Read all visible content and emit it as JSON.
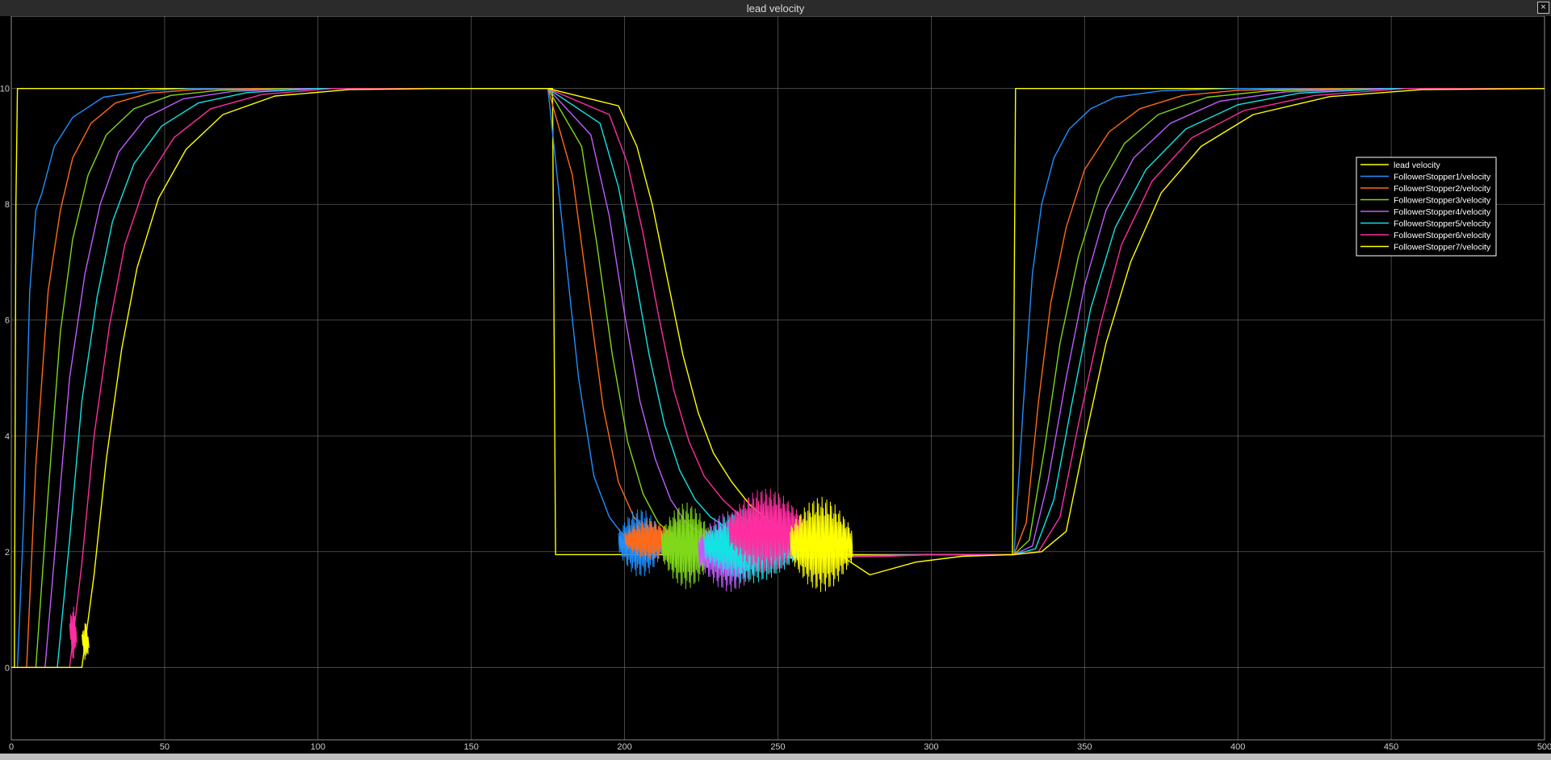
{
  "window": {
    "title": "lead velocity",
    "close_glyph": "×"
  },
  "colors": {
    "background": "#000000",
    "grid": "#595959",
    "axis_text": "#cfcfcf",
    "legend_border": "#ffffff",
    "legend_text": "#ffffff"
  },
  "chart_data": {
    "type": "line",
    "title": "lead velocity",
    "xlabel": "",
    "ylabel": "",
    "xlim": [
      0,
      500
    ],
    "ylim": [
      -1.25,
      11.25
    ],
    "xticks": [
      0,
      50,
      100,
      150,
      200,
      250,
      300,
      350,
      400,
      450,
      500
    ],
    "yticks": [
      0,
      2,
      4,
      6,
      8,
      10
    ],
    "grid": true,
    "legend_position": "top-right",
    "series": [
      {
        "name": "lead velocity",
        "color": "#ffff00",
        "x": [
          0,
          1,
          1.5,
          2,
          175,
          176.5,
          177.5,
          325,
          326.5,
          327.5,
          500
        ],
        "y": [
          0,
          0,
          8,
          10,
          10,
          10,
          1.95,
          1.95,
          1.95,
          10,
          10
        ]
      },
      {
        "name": "FollowerStopper1/velocity",
        "color": "#1f8fff",
        "x": [
          0,
          2,
          4,
          6,
          8,
          10,
          14,
          20,
          30,
          45,
          60,
          80,
          175,
          180,
          185,
          190,
          195,
          200,
          205,
          210,
          215,
          225,
          240,
          260,
          280,
          300,
          327,
          330,
          333,
          336,
          340,
          345,
          352,
          360,
          375,
          400,
          500
        ],
        "y": [
          0,
          0,
          2.5,
          6.5,
          7.9,
          8.2,
          9.0,
          9.5,
          9.85,
          9.97,
          10,
          10,
          10,
          7.5,
          5.0,
          3.3,
          2.6,
          2.25,
          2.1,
          2.05,
          1.95,
          1.95,
          1.9,
          1.92,
          1.93,
          1.95,
          1.95,
          4.5,
          6.8,
          8.0,
          8.8,
          9.3,
          9.65,
          9.85,
          9.96,
          10,
          10
        ]
      },
      {
        "name": "FollowerStopper2/velocity",
        "color": "#ff6a1a",
        "x": [
          0,
          5,
          8,
          12,
          16,
          20,
          26,
          34,
          45,
          60,
          80,
          100,
          175,
          183,
          188,
          193,
          198,
          203,
          208,
          213,
          220,
          235,
          255,
          280,
          300,
          327,
          331,
          335,
          339,
          344,
          350,
          358,
          368,
          382,
          400,
          430,
          500
        ],
        "y": [
          0,
          0,
          3.5,
          6.5,
          7.9,
          8.8,
          9.4,
          9.75,
          9.92,
          9.98,
          10,
          10,
          10,
          8.5,
          6.5,
          4.5,
          3.2,
          2.6,
          2.3,
          2.1,
          1.98,
          1.92,
          1.9,
          1.93,
          1.95,
          1.95,
          2.5,
          4.6,
          6.3,
          7.6,
          8.6,
          9.25,
          9.65,
          9.88,
          9.97,
          10,
          10
        ]
      },
      {
        "name": "FollowerStopper3/velocity",
        "color": "#7fd81a",
        "x": [
          0,
          8,
          12,
          16,
          20,
          25,
          31,
          40,
          52,
          68,
          90,
          120,
          175,
          186,
          191,
          196,
          201,
          206,
          211,
          216,
          222,
          230,
          245,
          265,
          285,
          300,
          327,
          332,
          337,
          342,
          348,
          355,
          363,
          374,
          390,
          410,
          440,
          500
        ],
        "y": [
          0,
          0,
          3.0,
          5.8,
          7.4,
          8.5,
          9.2,
          9.65,
          9.88,
          9.97,
          10,
          10,
          10,
          9.0,
          7.3,
          5.4,
          3.9,
          3.0,
          2.5,
          2.25,
          2.1,
          1.97,
          1.9,
          1.92,
          1.94,
          1.95,
          1.95,
          2.2,
          3.8,
          5.6,
          7.1,
          8.3,
          9.05,
          9.55,
          9.85,
          9.96,
          10,
          10
        ]
      },
      {
        "name": "FollowerStopper4/velocity",
        "color": "#c05cff",
        "x": [
          0,
          11,
          15,
          19,
          24,
          29,
          35,
          44,
          56,
          72,
          95,
          125,
          175,
          189,
          195,
          200,
          205,
          210,
          215,
          220,
          225,
          232,
          240,
          255,
          275,
          300,
          327,
          333,
          338,
          344,
          350,
          357,
          366,
          378,
          394,
          415,
          445,
          500
        ],
        "y": [
          0,
          0,
          2.5,
          5.0,
          6.8,
          8.0,
          8.9,
          9.5,
          9.82,
          9.95,
          10,
          10,
          10,
          9.2,
          7.8,
          6.1,
          4.6,
          3.6,
          2.9,
          2.5,
          2.3,
          2.1,
          1.95,
          1.9,
          1.93,
          1.95,
          1.95,
          2.1,
          3.2,
          5.0,
          6.6,
          7.9,
          8.8,
          9.4,
          9.78,
          9.94,
          10,
          10
        ]
      },
      {
        "name": "FollowerStopper5/velocity",
        "color": "#12e4e4",
        "x": [
          0,
          15,
          19,
          23,
          28,
          33,
          40,
          49,
          61,
          77,
          100,
          130,
          175,
          192,
          198,
          203,
          208,
          213,
          218,
          223,
          228,
          235,
          243,
          250,
          260,
          280,
          300,
          327,
          334,
          340,
          346,
          352,
          360,
          370,
          383,
          400,
          420,
          450,
          500
        ],
        "y": [
          0,
          0,
          2.2,
          4.6,
          6.4,
          7.7,
          8.7,
          9.35,
          9.75,
          9.93,
          10,
          10,
          10,
          9.4,
          8.3,
          6.9,
          5.4,
          4.2,
          3.4,
          2.9,
          2.6,
          2.35,
          2.15,
          2.0,
          1.9,
          1.92,
          1.95,
          1.95,
          2.05,
          2.9,
          4.6,
          6.2,
          7.6,
          8.6,
          9.3,
          9.72,
          9.92,
          10,
          10
        ]
      },
      {
        "name": "FollowerStopper6/velocity",
        "color": "#ff2da0",
        "x": [
          0,
          19,
          23,
          27,
          32,
          37,
          44,
          53,
          65,
          82,
          105,
          135,
          175,
          195,
          201,
          206,
          211,
          216,
          221,
          226,
          232,
          238,
          245,
          252,
          260,
          270,
          285,
          300,
          327,
          335,
          342,
          348,
          355,
          362,
          372,
          385,
          402,
          425,
          455,
          500
        ],
        "y": [
          0,
          0,
          1.8,
          4.0,
          5.9,
          7.3,
          8.4,
          9.15,
          9.65,
          9.9,
          10,
          10,
          10,
          9.55,
          8.7,
          7.5,
          6.1,
          4.8,
          3.9,
          3.3,
          2.9,
          2.6,
          2.4,
          2.2,
          2.05,
          1.92,
          1.92,
          1.95,
          1.95,
          2.0,
          2.6,
          4.2,
          5.9,
          7.3,
          8.4,
          9.15,
          9.62,
          9.88,
          10,
          10
        ]
      },
      {
        "name": "FollowerStopper7/velocity",
        "color": "#ffff00",
        "x": [
          0,
          23,
          27,
          31,
          36,
          41,
          48,
          57,
          69,
          86,
          110,
          140,
          175,
          198,
          204,
          209,
          214,
          219,
          224,
          229,
          235,
          241,
          248,
          255,
          262,
          270,
          280,
          295,
          310,
          327,
          336,
          344,
          350,
          357,
          365,
          375,
          388,
          405,
          430,
          460,
          500
        ],
        "y": [
          0,
          0,
          1.6,
          3.6,
          5.5,
          6.9,
          8.1,
          8.95,
          9.55,
          9.87,
          9.98,
          10,
          10,
          9.7,
          9.0,
          8.0,
          6.7,
          5.4,
          4.4,
          3.7,
          3.2,
          2.8,
          2.5,
          2.3,
          2.1,
          1.95,
          1.6,
          1.82,
          1.92,
          1.95,
          2.0,
          2.35,
          3.9,
          5.6,
          7.0,
          8.2,
          9.0,
          9.55,
          9.86,
          9.98,
          10
        ]
      }
    ],
    "oscillation_bursts": [
      {
        "series": "FollowerStopper1/velocity",
        "x_start": 198,
        "x_end": 212,
        "y_low": 1.55,
        "y_high": 2.75
      },
      {
        "series": "FollowerStopper2/velocity",
        "x_start": 200,
        "x_end": 216,
        "y_low": 1.85,
        "y_high": 2.55
      },
      {
        "series": "FollowerStopper3/velocity",
        "x_start": 212,
        "x_end": 228,
        "y_low": 1.35,
        "y_high": 2.85
      },
      {
        "series": "FollowerStopper4/velocity",
        "x_start": 224,
        "x_end": 244,
        "y_low": 1.3,
        "y_high": 2.7
      },
      {
        "series": "FollowerStopper5/velocity",
        "x_start": 226,
        "x_end": 256,
        "y_low": 1.45,
        "y_high": 2.75
      },
      {
        "series": "FollowerStopper6/velocity",
        "x_start": 234,
        "x_end": 258,
        "y_low": 1.6,
        "y_high": 3.1
      },
      {
        "series": "FollowerStopper7/velocity",
        "x_start": 254,
        "x_end": 274,
        "y_low": 1.3,
        "y_high": 2.95
      },
      {
        "series": "FollowerStopper6/velocity",
        "x_start": 19,
        "x_end": 21,
        "y_low": 0.1,
        "y_high": 1.1
      },
      {
        "series": "FollowerStopper7/velocity",
        "x_start": 23,
        "x_end": 25,
        "y_low": 0.1,
        "y_high": 0.8
      }
    ]
  }
}
